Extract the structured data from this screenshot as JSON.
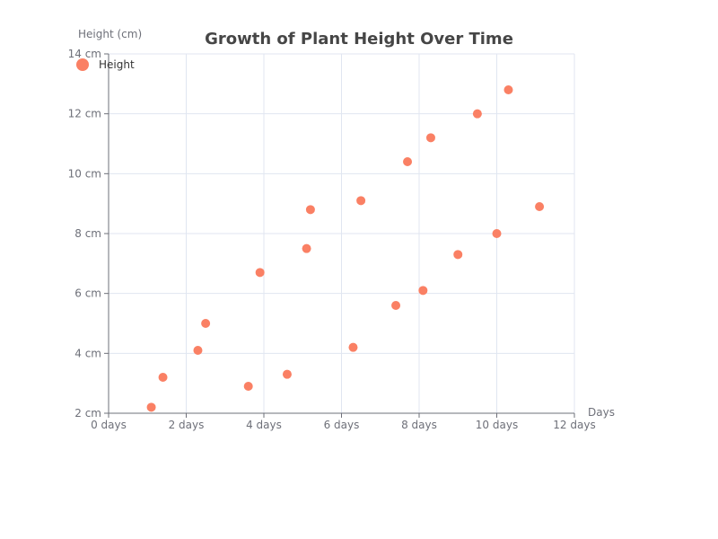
{
  "chart_data": {
    "type": "scatter",
    "title": "Growth of Plant Height Over Time",
    "xlabel": "Days",
    "ylabel": "Height (cm)",
    "xlim": [
      0,
      12
    ],
    "ylim": [
      2,
      14
    ],
    "x_ticks": [
      0,
      2,
      4,
      6,
      8,
      10,
      12
    ],
    "y_ticks": [
      2,
      4,
      6,
      8,
      10,
      12,
      14
    ],
    "x_tick_labels": [
      "0 days",
      "2 days",
      "4 days",
      "6 days",
      "8 days",
      "10 days",
      "12 days"
    ],
    "y_tick_labels": [
      "2 cm",
      "4 cm",
      "6 cm",
      "8 cm",
      "10 cm",
      "12 cm",
      "14 cm"
    ],
    "grid": true,
    "legend_position": "top-left",
    "series": [
      {
        "name": "Height",
        "color": "#fa8064",
        "points": [
          {
            "x": 1.1,
            "y": 2.2
          },
          {
            "x": 1.4,
            "y": 3.2
          },
          {
            "x": 2.3,
            "y": 4.1
          },
          {
            "x": 2.5,
            "y": 5.0
          },
          {
            "x": 3.6,
            "y": 2.9
          },
          {
            "x": 3.9,
            "y": 6.7
          },
          {
            "x": 4.6,
            "y": 3.3
          },
          {
            "x": 5.1,
            "y": 7.5
          },
          {
            "x": 5.2,
            "y": 8.8
          },
          {
            "x": 6.3,
            "y": 4.2
          },
          {
            "x": 6.5,
            "y": 9.1
          },
          {
            "x": 7.4,
            "y": 5.6
          },
          {
            "x": 7.7,
            "y": 10.4
          },
          {
            "x": 8.1,
            "y": 6.1
          },
          {
            "x": 8.3,
            "y": 11.2
          },
          {
            "x": 9.0,
            "y": 7.3
          },
          {
            "x": 9.5,
            "y": 12.0
          },
          {
            "x": 10.0,
            "y": 8.0
          },
          {
            "x": 10.3,
            "y": 12.8
          },
          {
            "x": 11.1,
            "y": 8.9
          }
        ]
      }
    ]
  }
}
